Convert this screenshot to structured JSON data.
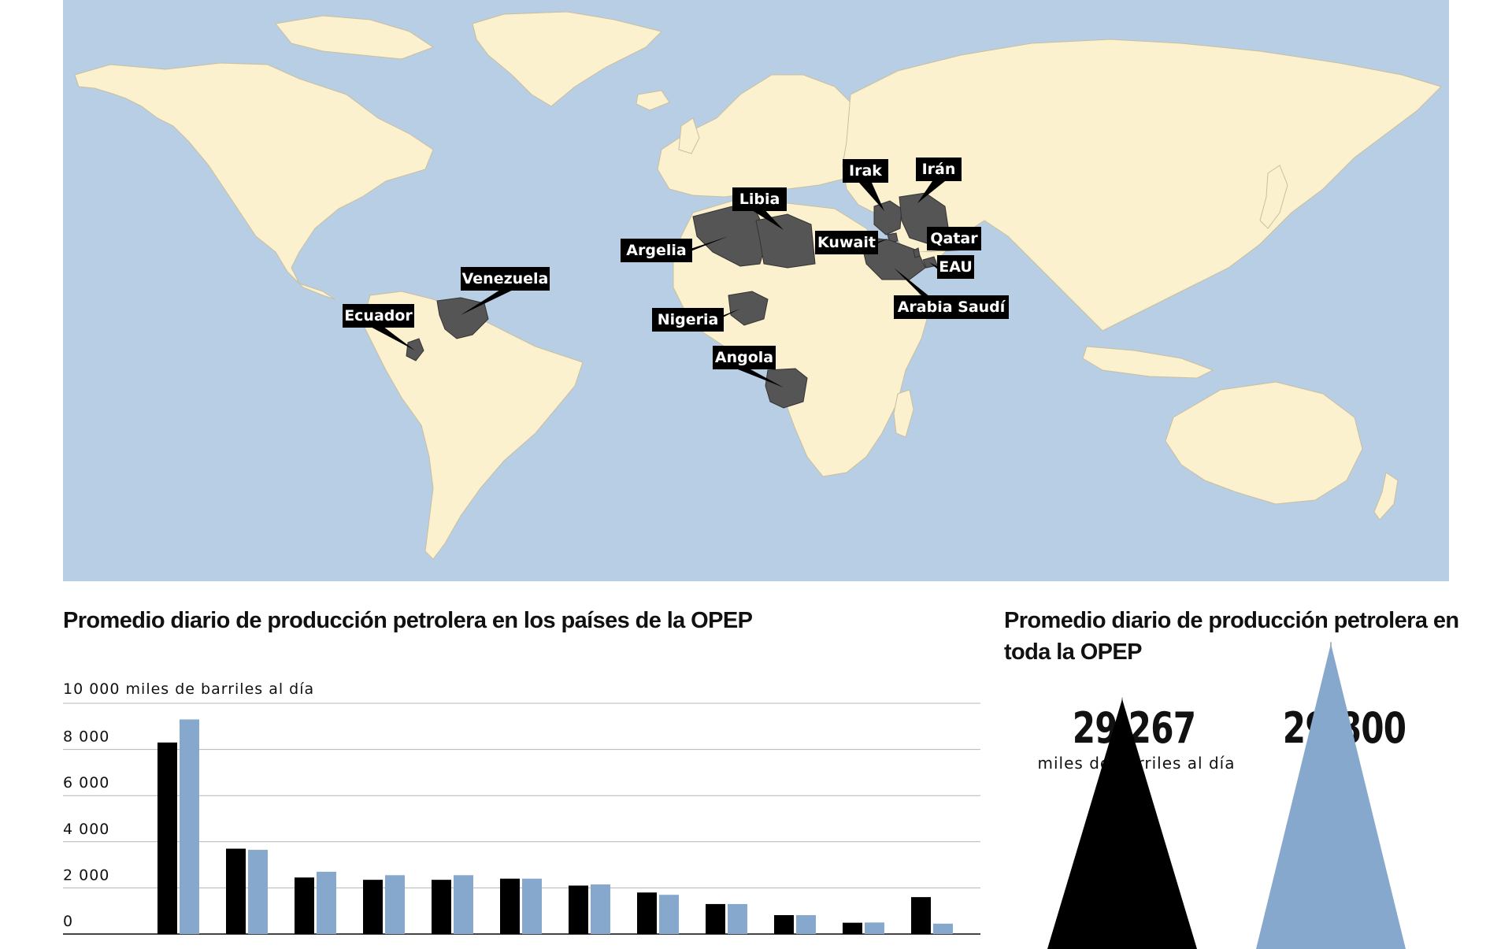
{
  "map": {
    "ocean_color": "#b7cee4",
    "land_color": "#fbf1cf",
    "member_color": "#555555",
    "label_bg": "#000000",
    "label_fg": "#ffffff",
    "labels": [
      {
        "id": "ecuador",
        "text": "Ecuador"
      },
      {
        "id": "venezuela",
        "text": "Venezuela"
      },
      {
        "id": "argelia",
        "text": "Argelia"
      },
      {
        "id": "libia",
        "text": "Libia"
      },
      {
        "id": "nigeria",
        "text": "Nigeria"
      },
      {
        "id": "angola",
        "text": "Angola"
      },
      {
        "id": "irak",
        "text": "Irak"
      },
      {
        "id": "iran",
        "text": "Irán"
      },
      {
        "id": "kuwait",
        "text": "Kuwait"
      },
      {
        "id": "qatar",
        "text": "Qatar"
      },
      {
        "id": "eau",
        "text": "EAU"
      },
      {
        "id": "arabia",
        "text": "Arabia Saudí"
      }
    ]
  },
  "countries_title": "Promedio diario de producción petrolera en los países de la OPEP",
  "total_title": "Promedio diario de producción petrolera en toda la OPEP",
  "chart_data": [
    {
      "type": "bar",
      "title": "Promedio diario de producción petrolera en los países de la OPEP",
      "ylabel": "miles de barriles al día",
      "ylim": [
        0,
        10000
      ],
      "yticks": [
        {
          "value": 0,
          "label": "0"
        },
        {
          "value": 2000,
          "label": "2 000"
        },
        {
          "value": 4000,
          "label": "4 000"
        },
        {
          "value": 6000,
          "label": "6 000"
        },
        {
          "value": 8000,
          "label": "8 000"
        },
        {
          "value": 10000,
          "label": "10 000"
        }
      ],
      "grid": true,
      "categories": [
        "",
        "",
        "",
        "",
        "",
        "",
        "",
        "",
        "",
        "",
        "",
        ""
      ],
      "series": [
        {
          "color": "#000000",
          "values": [
            8300,
            3700,
            2450,
            2350,
            2350,
            2400,
            2100,
            1800,
            1300,
            820,
            490,
            1600
          ]
        },
        {
          "color": "#86a8cd",
          "values": [
            9300,
            3650,
            2700,
            2550,
            2550,
            2400,
            2150,
            1700,
            1300,
            820,
            500,
            450
          ]
        }
      ]
    },
    {
      "type": "bar",
      "title": "Promedio diario de producción petrolera en toda la OPEP",
      "unit": "miles de barriles al día",
      "values": [
        29267,
        29800
      ],
      "value_labels": [
        "29 267",
        "29 800"
      ],
      "colors": [
        "#000000",
        "#86a8cd"
      ]
    }
  ]
}
